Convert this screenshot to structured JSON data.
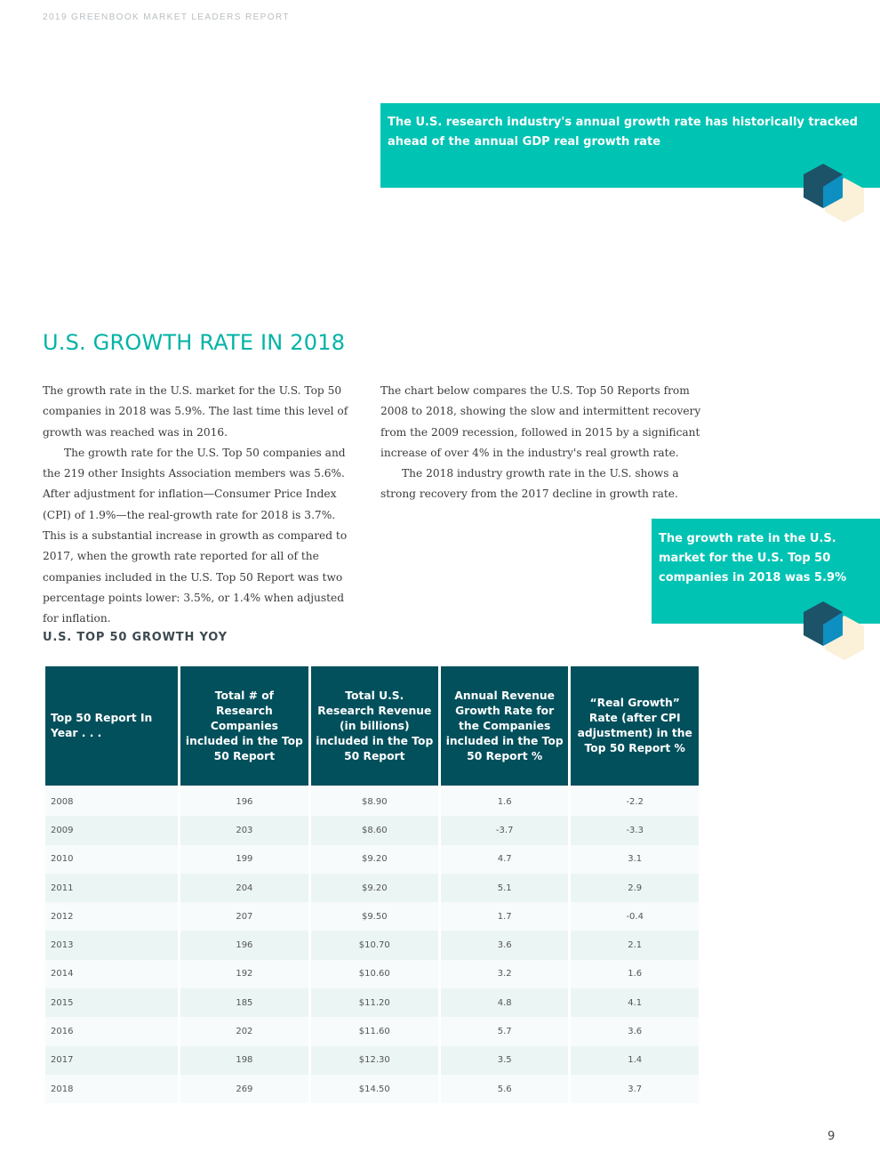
{
  "header": {
    "running_title": "2019 GREENBOOK MARKET LEADERS REPORT"
  },
  "callouts": [
    {
      "text": "The U.S. research industry's annual growth rate has historically tracked ahead of the annual GDP real growth rate"
    },
    {
      "text": "The growth rate in the U.S. market for the U.S. Top 50 companies in 2018 was 5.9%"
    }
  ],
  "section": {
    "title": "U.S. GROWTH RATE IN 2018"
  },
  "body": {
    "left": [
      "The growth rate in the U.S. market for the U.S. Top 50 companies in 2018 was 5.9%. The last time this level of growth was reached was in 2016.",
      "The growth rate for the U.S. Top 50 companies and the 219 other Insights Association members was 5.6%. After adjustment for inflation—Consumer Price Index (CPI) of 1.9%—the real-growth rate for 2018 is 3.7%. This is a substantial increase in growth as compared to 2017, when the growth rate reported for all of the companies included in the U.S. Top 50 Report was two percentage points lower: 3.5%, or 1.4% when adjusted for inflation."
    ],
    "right": [
      "The chart below compares the U.S. Top 50 Reports from 2008 to 2018, showing the slow and intermittent recovery from the 2009 recession, followed in 2015 by a significant increase of over 4% in the industry's real growth rate.",
      "The 2018 industry growth rate in the U.S. shows a strong recovery from the 2017 decline in growth rate."
    ]
  },
  "table": {
    "title": "U.S. TOP 50 GROWTH YOY",
    "headers": [
      "Top 50 Report In Year . . .",
      "Total # of Research Companies included in the Top 50 Report",
      "Total U.S. Research Revenue (in billions) included in the Top 50 Report",
      "Annual Revenue Growth Rate for the Companies included in the Top 50 Report %",
      "“Real Growth” Rate (after CPI adjustment) in the Top 50 Report %"
    ],
    "rows": [
      [
        "2008",
        "196",
        "$8.90",
        "1.6",
        "-2.2"
      ],
      [
        "2009",
        "203",
        "$8.60",
        "-3.7",
        "-3.3"
      ],
      [
        "2010",
        "199",
        "$9.20",
        "4.7",
        "3.1"
      ],
      [
        "2011",
        "204",
        "$9.20",
        "5.1",
        "2.9"
      ],
      [
        "2012",
        "207",
        "$9.50",
        "1.7",
        "-0.4"
      ],
      [
        "2013",
        "196",
        "$10.70",
        "3.6",
        "2.1"
      ],
      [
        "2014",
        "192",
        "$10.60",
        "3.2",
        "1.6"
      ],
      [
        "2015",
        "185",
        "$11.20",
        "4.8",
        "4.1"
      ],
      [
        "2016",
        "202",
        "$11.60",
        "5.7",
        "3.6"
      ],
      [
        "2017",
        "198",
        "$12.30",
        "3.5",
        "1.4"
      ],
      [
        "2018",
        "269",
        "$14.50",
        "5.6",
        "3.7"
      ]
    ]
  },
  "footer": {
    "page_number": "9"
  },
  "colors": {
    "teal": "#00c3b3",
    "dark_teal": "#02505c",
    "title_teal": "#00b3a6"
  },
  "icons": {
    "decoration": "hexagon-cube-icon"
  }
}
